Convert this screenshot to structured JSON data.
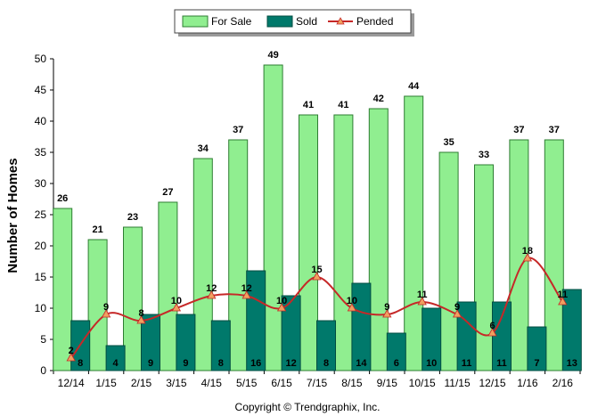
{
  "chart_data": {
    "type": "bar",
    "ylabel": "Number of Homes",
    "xlabel": "",
    "ylim": [
      0,
      50
    ],
    "yticks": [
      0,
      5,
      10,
      15,
      20,
      25,
      30,
      35,
      40,
      45,
      50
    ],
    "grid": false,
    "legend_position": "top-center",
    "categories": [
      "12/14",
      "1/15",
      "2/15",
      "3/15",
      "4/15",
      "5/15",
      "6/15",
      "7/15",
      "8/15",
      "9/15",
      "10/15",
      "11/15",
      "12/15",
      "1/16",
      "2/16"
    ],
    "series": [
      {
        "name": "For Sale",
        "kind": "bar",
        "color": "#90ee90",
        "stroke": "#2e7d32",
        "values": [
          26,
          21,
          23,
          27,
          34,
          37,
          49,
          41,
          41,
          42,
          44,
          35,
          33,
          37,
          37
        ]
      },
      {
        "name": "Sold",
        "kind": "bar",
        "color": "#00796b",
        "stroke": "#004d40",
        "values": [
          8,
          4,
          9,
          9,
          8,
          16,
          12,
          8,
          14,
          6,
          10,
          11,
          11,
          7,
          13
        ]
      },
      {
        "name": "Pended",
        "kind": "line",
        "color": "#c62828",
        "marker_color": "#f0a060",
        "values": [
          2,
          9,
          8,
          10,
          12,
          12,
          10,
          15,
          10,
          9,
          11,
          9,
          6,
          18,
          11
        ]
      }
    ],
    "footer": "Copyright © Trendgraphix, Inc."
  }
}
